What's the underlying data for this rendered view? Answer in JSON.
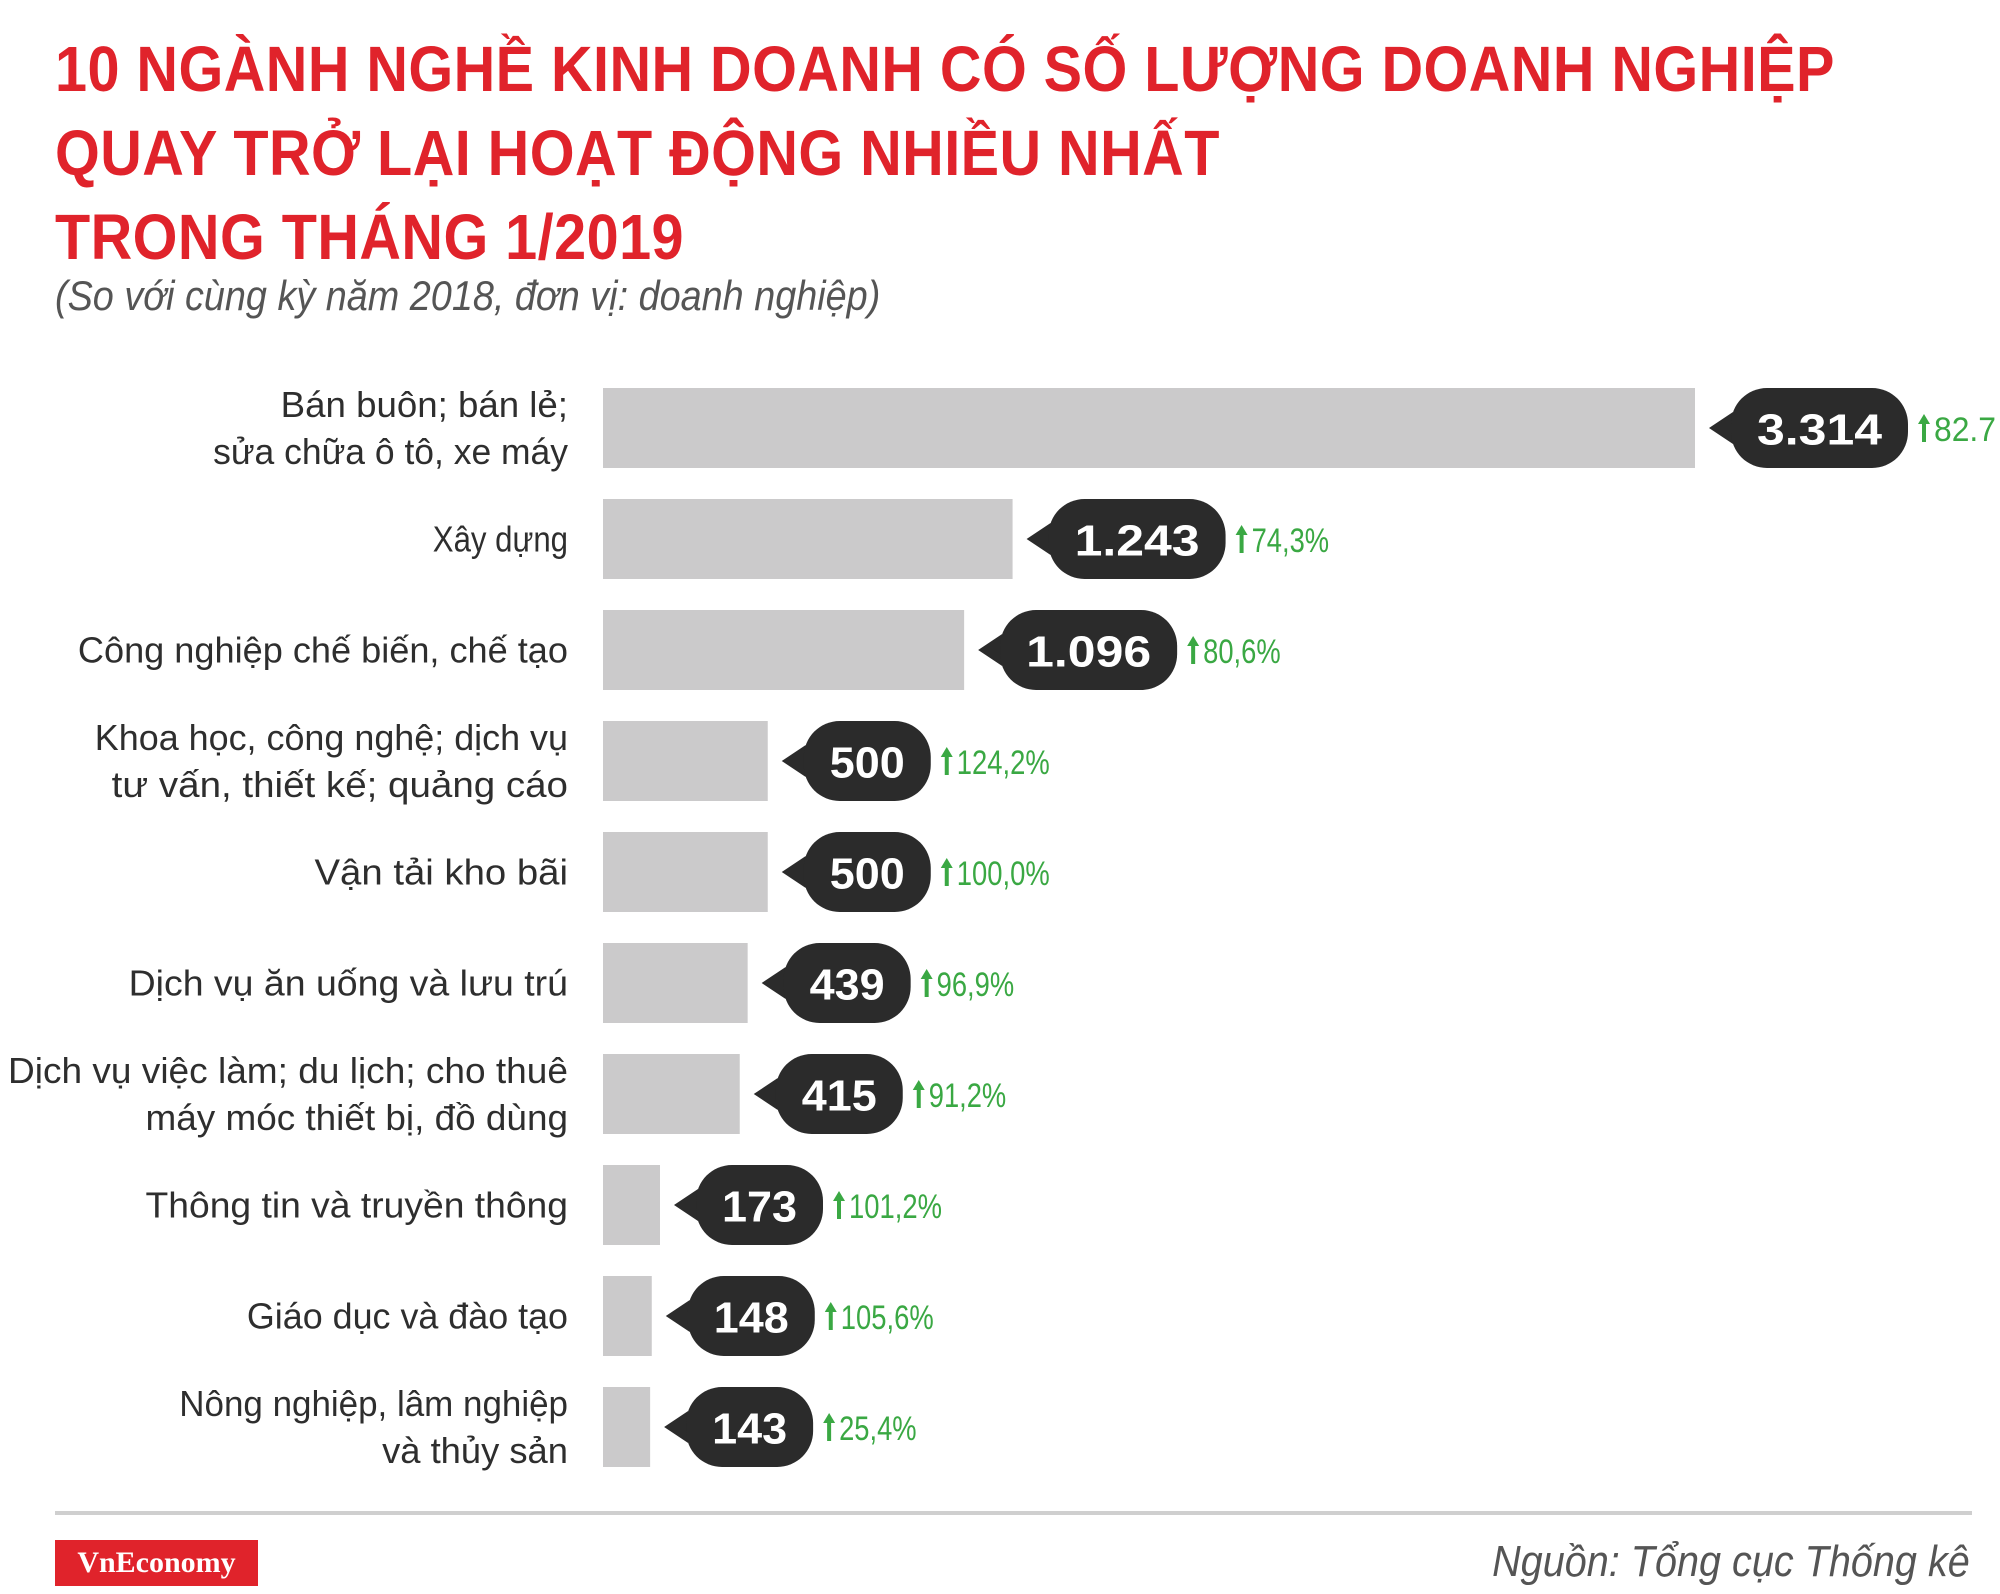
{
  "title": {
    "line1": "10 NGÀNH NGHỀ KINH DOANH CÓ SỐ LƯỢNG DOANH NGHIỆP",
    "line2": "QUAY TRỞ LẠI HOẠT ĐỘNG NHIỀU NHẤT",
    "line3": "TRONG THÁNG 1/2019"
  },
  "subtitle": "(So với cùng kỳ năm 2018, đơn vị: doanh nghiệp)",
  "brand": "VnEconomy",
  "source": "Nguồn: Tổng cục Thống kê",
  "colors": {
    "title": "#e0232b",
    "bar": "#cbcacb",
    "bubble": "#2b2b2b",
    "growth": "#3aa843",
    "brand_bg": "#e0232b"
  },
  "chart_data": {
    "type": "bar",
    "orientation": "horizontal",
    "categories": [
      [
        "Bán buôn; bán lẻ;",
        "sửa chữa ô tô, xe máy"
      ],
      [
        "Xây dựng"
      ],
      [
        "Công nghiệp chế biến, chế tạo"
      ],
      [
        "Khoa học, công nghệ; dịch vụ",
        "tư vấn, thiết kế; quảng cáo"
      ],
      [
        "Vận tải kho bãi"
      ],
      [
        "Dịch vụ ăn uống và lưu trú"
      ],
      [
        "Dịch vụ việc làm; du lịch; cho thuê",
        "máy móc thiết bị, đồ dùng"
      ],
      [
        "Thông tin và truyền thông"
      ],
      [
        "Giáo dục và đào tạo"
      ],
      [
        "Nông nghiệp, lâm nghiệp",
        "và thủy sản"
      ]
    ],
    "values": [
      3314,
      1243,
      1096,
      500,
      500,
      439,
      415,
      173,
      148,
      143
    ],
    "value_labels": [
      "3.314",
      "1.243",
      "1.096",
      "500",
      "500",
      "439",
      "415",
      "173",
      "148",
      "143"
    ],
    "growth_labels": [
      "82.7",
      "74,3%",
      "80,6%",
      "124,2%",
      "100,0%",
      "96,9%",
      "91,2%",
      "101,2%",
      "105,6%",
      "25,4%"
    ],
    "growth_direction": "up",
    "xlim": [
      0,
      3314
    ]
  }
}
